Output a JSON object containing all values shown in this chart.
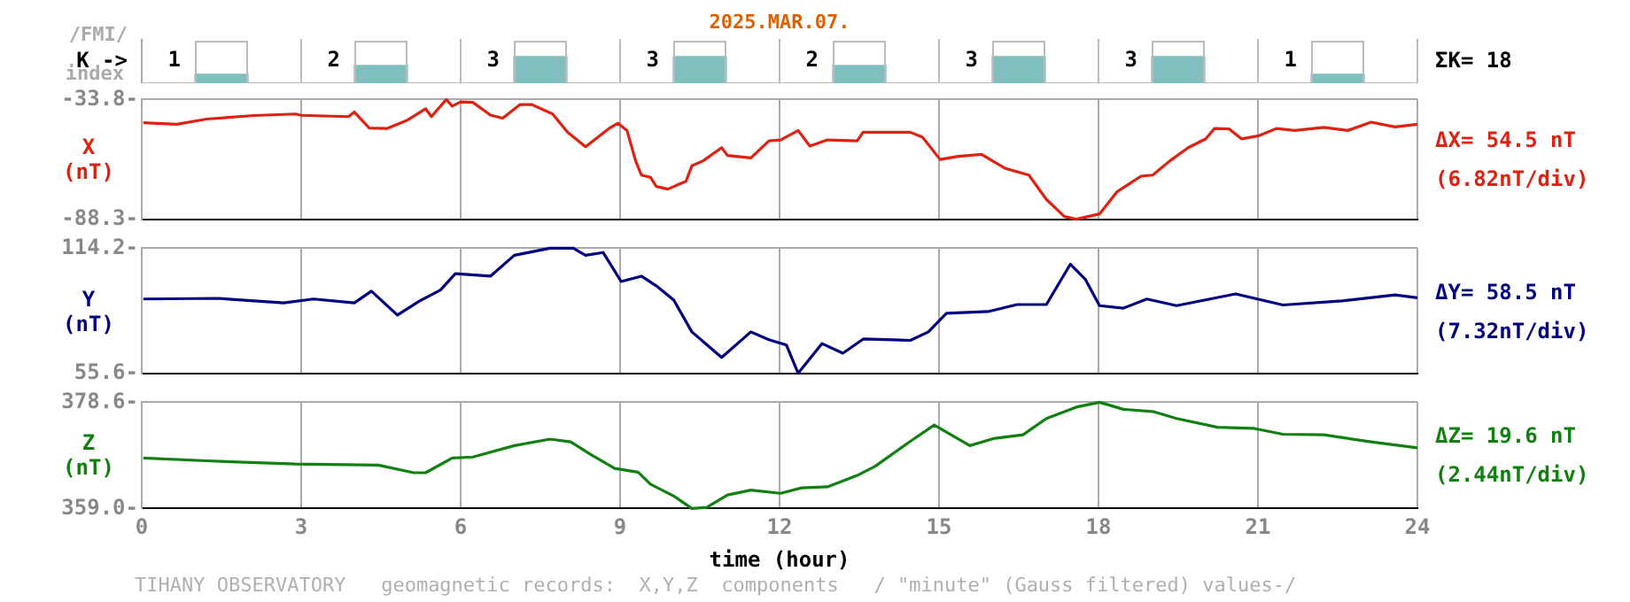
{
  "chart_data": [
    {
      "type": "bar",
      "title": "2025.MAR.07.",
      "ylabel": "K ->",
      "annotations": [
        "/FMI/",
        "index",
        "ΣK= 18"
      ],
      "categories": [
        null,
        null,
        null,
        null,
        null,
        null,
        null,
        null
      ],
      "values": [
        1,
        2,
        3,
        3,
        2,
        3,
        3,
        1
      ],
      "color": "#7fbfbf",
      "data_labels": true,
      "grid": "x",
      "tick_labels": false,
      "legend": false
    },
    {
      "type": "line",
      "ylabel": "X (nT)",
      "annotations": [
        "ΔX= 54.5 nT",
        "(6.82nT/div)"
      ],
      "xlim": [
        0,
        24
      ],
      "xticks": [
        0,
        3,
        6,
        9,
        12,
        15,
        18,
        21,
        24
      ],
      "ylim": [
        -88.3,
        -33.8
      ],
      "yticks": [
        {
          "value": -88.3,
          "label": "-88.3-"
        },
        {
          "value": -33.8,
          "label": "-33.8-"
        }
      ],
      "grid": true,
      "tick_labels": "y",
      "legend": false,
      "marker": "none",
      "series": [
        {
          "color": "#e02010",
          "x": [
            0.03,
            0.66,
            1.22,
            2.11,
            2.89,
            3.0,
            3.89,
            4.0,
            4.28,
            4.61,
            5.0,
            5.34,
            5.45,
            5.73,
            5.84,
            6.0,
            6.23,
            6.56,
            6.79,
            7.12,
            7.34,
            7.73,
            8.01,
            8.35,
            8.79,
            8.96,
            9.13,
            9.29,
            9.4,
            9.57,
            9.68,
            9.9,
            10.24,
            10.35,
            10.57,
            10.91,
            11.02,
            11.46,
            11.8,
            12.02,
            12.35,
            12.57,
            12.9,
            13.46,
            13.57,
            14.46,
            14.69,
            15.02,
            15.36,
            15.8,
            16.25,
            16.69,
            17.02,
            17.36,
            17.58,
            18.02,
            18.35,
            18.8,
            19.02,
            19.35,
            19.69,
            20.02,
            20.18,
            20.46,
            20.69,
            21.02,
            21.35,
            21.69,
            22.24,
            22.69,
            23.13,
            23.58,
            24.0
          ],
          "values": [
            -44.4,
            -45.1,
            -42.7,
            -41.1,
            -40.4,
            -41.0,
            -41.6,
            -39.5,
            -46.8,
            -47.0,
            -43.2,
            -38.0,
            -41.6,
            -33.8,
            -36.8,
            -34.9,
            -35.1,
            -40.9,
            -42.3,
            -36.1,
            -36.1,
            -40.4,
            -48.7,
            -55.3,
            -47.0,
            -44.6,
            -47.9,
            -61.6,
            -68.2,
            -69.2,
            -73.4,
            -74.6,
            -71.0,
            -64.0,
            -61.6,
            -55.7,
            -59.3,
            -60.4,
            -52.6,
            -52.2,
            -47.9,
            -55.0,
            -52.2,
            -52.6,
            -48.7,
            -48.7,
            -51.0,
            -61.1,
            -59.7,
            -58.8,
            -65.2,
            -68.2,
            -79.3,
            -87.1,
            -88.3,
            -85.9,
            -75.8,
            -68.7,
            -68.2,
            -61.6,
            -55.7,
            -51.7,
            -47.0,
            -47.2,
            -51.7,
            -50.3,
            -47.0,
            -47.9,
            -46.5,
            -47.9,
            -44.1,
            -46.3,
            -45.1
          ]
        }
      ]
    },
    {
      "type": "line",
      "ylabel": "Y (nT)",
      "annotations": [
        "ΔY= 58.5 nT",
        "(7.32nT/div)"
      ],
      "xlim": [
        0,
        24
      ],
      "xticks": [
        0,
        3,
        6,
        9,
        12,
        15,
        18,
        21,
        24
      ],
      "ylim": [
        55.6,
        114.2
      ],
      "yticks": [
        {
          "value": 55.6,
          "label": "55.6-"
        },
        {
          "value": 114.2,
          "label": "114.2-"
        }
      ],
      "grid": true,
      "tick_labels": "y",
      "legend": false,
      "marker": "none",
      "series": [
        {
          "color": "#000080",
          "x": [
            0.03,
            1.44,
            2.67,
            3.23,
            4.0,
            4.32,
            4.81,
            5.23,
            5.62,
            5.9,
            6.56,
            7.01,
            7.68,
            8.12,
            8.35,
            8.68,
            9.02,
            9.4,
            9.68,
            10.01,
            10.35,
            10.91,
            11.46,
            11.8,
            12.13,
            12.35,
            12.8,
            13.19,
            13.58,
            14.46,
            14.8,
            15.14,
            15.92,
            16.47,
            17.02,
            17.47,
            17.75,
            18.02,
            18.47,
            18.91,
            19.47,
            20.58,
            21.47,
            22.58,
            23.58,
            24.0
          ],
          "values": [
            90.4,
            90.7,
            88.6,
            90.4,
            88.6,
            94.1,
            82.9,
            89.5,
            94.6,
            102.3,
            101.1,
            110.9,
            114.2,
            114.2,
            110.9,
            112.2,
            98.6,
            101.1,
            96.6,
            89.9,
            75.0,
            63.0,
            75.0,
            71.3,
            68.8,
            55.6,
            69.5,
            65.0,
            71.7,
            71.0,
            75.0,
            83.7,
            84.5,
            87.8,
            87.8,
            106.7,
            99.7,
            87.3,
            86.1,
            90.4,
            87.3,
            92.8,
            87.6,
            89.5,
            92.3,
            91.0
          ]
        }
      ]
    },
    {
      "type": "line",
      "ylabel": "Z (nT)",
      "xlabel": "time (hour)",
      "annotations": [
        "ΔZ= 19.6 nT",
        "(2.44nT/div)",
        "TIHANY OBSERVATORY   geomagnetic records:  X,Y,Z  components   / \"minute\" (Gauss filtered) values-/"
      ],
      "xlim": [
        0,
        24
      ],
      "xticks": [
        0,
        3,
        6,
        9,
        12,
        15,
        18,
        21,
        24
      ],
      "ylim": [
        359.0,
        378.6
      ],
      "yticks": [
        {
          "value": 359.0,
          "label": "359.0-"
        },
        {
          "value": 378.6,
          "label": "378.6-"
        }
      ],
      "grid": true,
      "legend": false,
      "marker": "none",
      "series": [
        {
          "color": "#108010",
          "x": [
            0.03,
            1.22,
            2.89,
            4.45,
            5.12,
            5.34,
            5.84,
            6.23,
            7.01,
            7.68,
            8.07,
            8.46,
            8.9,
            9.34,
            9.57,
            10.01,
            10.35,
            10.63,
            11.02,
            11.46,
            12.02,
            12.41,
            12.9,
            13.46,
            13.8,
            14.46,
            14.91,
            15.58,
            16.02,
            16.58,
            17.02,
            17.58,
            18.02,
            18.47,
            19.02,
            19.47,
            20.24,
            20.91,
            21.47,
            22.24,
            23.13,
            24.0
          ],
          "values": [
            368.3,
            367.8,
            367.2,
            367.0,
            365.6,
            365.6,
            368.3,
            368.5,
            370.6,
            371.8,
            371.3,
            368.9,
            366.4,
            365.7,
            363.5,
            361.3,
            359.0,
            359.2,
            361.5,
            362.4,
            361.8,
            362.8,
            363.0,
            365.1,
            366.8,
            371.4,
            374.4,
            370.6,
            371.9,
            372.6,
            375.6,
            377.7,
            378.6,
            377.3,
            376.9,
            375.6,
            374.0,
            373.8,
            372.7,
            372.6,
            371.3,
            370.2
          ]
        }
      ]
    }
  ]
}
